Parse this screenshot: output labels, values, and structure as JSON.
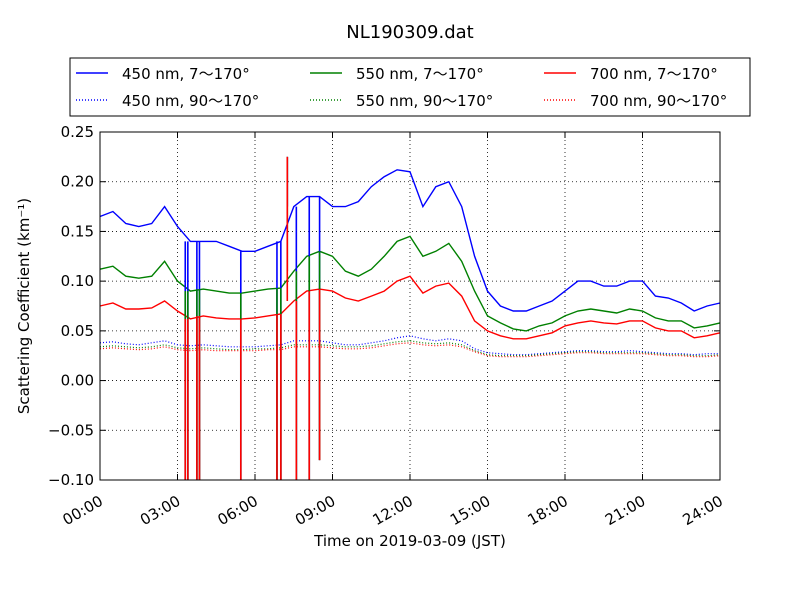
{
  "chart_data": {
    "type": "line",
    "title": "NL190309.dat",
    "xlabel": "Time on 2019-03-09 (JST)",
    "ylabel": "Scattering Coefficient (km⁻¹)",
    "xlim": [
      0,
      24
    ],
    "ylim": [
      -0.1,
      0.25
    ],
    "x_ticks": [
      "00:00",
      "03:00",
      "06:00",
      "09:00",
      "12:00",
      "15:00",
      "18:00",
      "21:00",
      "24:00"
    ],
    "y_ticks": [
      "−0.10",
      "−0.05",
      "0.00",
      "0.05",
      "0.10",
      "0.15",
      "0.20",
      "0.25"
    ],
    "grid": true,
    "legend_placement": "top (above plot, 3 columns)",
    "x": [
      0.0,
      0.5,
      1.0,
      1.5,
      2.0,
      2.5,
      3.0,
      3.5,
      4.0,
      4.5,
      5.0,
      5.5,
      6.0,
      6.5,
      7.0,
      7.5,
      8.0,
      8.5,
      9.0,
      9.5,
      10.0,
      10.5,
      11.0,
      11.5,
      12.0,
      12.5,
      13.0,
      13.5,
      14.0,
      14.5,
      15.0,
      15.5,
      16.0,
      16.5,
      17.0,
      17.5,
      18.0,
      18.5,
      19.0,
      19.5,
      20.0,
      20.5,
      21.0,
      21.5,
      22.0,
      22.5,
      23.0,
      23.5,
      24.0
    ],
    "series": [
      {
        "name": "450 nm, 7～170°",
        "color": "#0000ff",
        "style": "solid",
        "values": [
          0.165,
          0.17,
          0.158,
          0.155,
          0.158,
          0.175,
          0.155,
          0.14,
          0.14,
          0.14,
          0.135,
          0.13,
          0.13,
          0.135,
          0.14,
          0.175,
          0.185,
          0.185,
          0.175,
          0.175,
          0.18,
          0.195,
          0.205,
          0.212,
          0.21,
          0.175,
          0.195,
          0.2,
          0.175,
          0.125,
          0.09,
          0.075,
          0.07,
          0.07,
          0.075,
          0.08,
          0.09,
          0.1,
          0.1,
          0.095,
          0.095,
          0.1,
          0.1,
          0.085,
          0.083,
          0.078,
          0.07,
          0.075,
          0.078
        ]
      },
      {
        "name": "550 nm, 7～170°",
        "color": "#008000",
        "style": "solid",
        "values": [
          0.112,
          0.115,
          0.105,
          0.103,
          0.105,
          0.12,
          0.1,
          0.09,
          0.092,
          0.09,
          0.088,
          0.088,
          0.09,
          0.092,
          0.093,
          0.11,
          0.125,
          0.13,
          0.125,
          0.11,
          0.105,
          0.112,
          0.125,
          0.14,
          0.145,
          0.125,
          0.13,
          0.138,
          0.12,
          0.09,
          0.065,
          0.058,
          0.052,
          0.05,
          0.055,
          0.058,
          0.065,
          0.07,
          0.072,
          0.07,
          0.068,
          0.072,
          0.07,
          0.063,
          0.06,
          0.06,
          0.053,
          0.055,
          0.058
        ]
      },
      {
        "name": "700 nm, 7～170°",
        "color": "#ff0000",
        "style": "solid",
        "values": [
          0.075,
          0.078,
          0.072,
          0.072,
          0.073,
          0.08,
          0.07,
          0.062,
          0.065,
          0.063,
          0.062,
          0.062,
          0.063,
          0.065,
          0.067,
          0.08,
          0.09,
          0.092,
          0.09,
          0.083,
          0.08,
          0.085,
          0.09,
          0.1,
          0.105,
          0.088,
          0.095,
          0.098,
          0.085,
          0.06,
          0.05,
          0.045,
          0.042,
          0.042,
          0.045,
          0.048,
          0.055,
          0.058,
          0.06,
          0.058,
          0.057,
          0.06,
          0.06,
          0.053,
          0.05,
          0.05,
          0.043,
          0.045,
          0.048
        ]
      },
      {
        "name": "450 nm, 90～170°",
        "color": "#0000ff",
        "style": "dotted",
        "values": [
          0.038,
          0.039,
          0.037,
          0.036,
          0.038,
          0.04,
          0.036,
          0.035,
          0.036,
          0.035,
          0.034,
          0.034,
          0.034,
          0.035,
          0.036,
          0.04,
          0.04,
          0.04,
          0.038,
          0.036,
          0.036,
          0.038,
          0.04,
          0.043,
          0.045,
          0.042,
          0.04,
          0.042,
          0.04,
          0.032,
          0.028,
          0.027,
          0.026,
          0.026,
          0.027,
          0.028,
          0.029,
          0.03,
          0.03,
          0.029,
          0.029,
          0.03,
          0.029,
          0.028,
          0.027,
          0.027,
          0.026,
          0.027,
          0.027
        ]
      },
      {
        "name": "550 nm, 90～170°",
        "color": "#008000",
        "style": "dotted",
        "values": [
          0.034,
          0.035,
          0.034,
          0.033,
          0.034,
          0.036,
          0.033,
          0.032,
          0.033,
          0.032,
          0.031,
          0.031,
          0.032,
          0.032,
          0.033,
          0.036,
          0.036,
          0.036,
          0.035,
          0.034,
          0.034,
          0.035,
          0.037,
          0.039,
          0.04,
          0.038,
          0.037,
          0.038,
          0.036,
          0.03,
          0.026,
          0.025,
          0.025,
          0.025,
          0.026,
          0.027,
          0.028,
          0.029,
          0.029,
          0.028,
          0.028,
          0.028,
          0.028,
          0.027,
          0.026,
          0.026,
          0.025,
          0.025,
          0.026
        ]
      },
      {
        "name": "700 nm, 90～170°",
        "color": "#ff0000",
        "style": "dotted",
        "values": [
          0.032,
          0.033,
          0.032,
          0.031,
          0.032,
          0.034,
          0.031,
          0.03,
          0.031,
          0.03,
          0.03,
          0.03,
          0.03,
          0.031,
          0.031,
          0.034,
          0.034,
          0.034,
          0.033,
          0.032,
          0.032,
          0.033,
          0.035,
          0.037,
          0.038,
          0.036,
          0.035,
          0.036,
          0.034,
          0.029,
          0.025,
          0.024,
          0.024,
          0.024,
          0.025,
          0.026,
          0.027,
          0.028,
          0.028,
          0.027,
          0.027,
          0.027,
          0.027,
          0.026,
          0.025,
          0.025,
          0.024,
          0.024,
          0.025
        ]
      }
    ],
    "spikes": [
      {
        "x": 3.3,
        "y": -0.1
      },
      {
        "x": 3.4,
        "y": -0.1
      },
      {
        "x": 3.75,
        "y": -0.1
      },
      {
        "x": 3.85,
        "y": -0.1
      },
      {
        "x": 5.45,
        "y": -0.1
      },
      {
        "x": 6.85,
        "y": -0.1
      },
      {
        "x": 7.0,
        "y": -0.1
      },
      {
        "x": 7.25,
        "y": 0.225
      },
      {
        "x": 7.6,
        "y": -0.1
      },
      {
        "x": 8.1,
        "y": -0.1
      },
      {
        "x": 8.5,
        "y": -0.08
      }
    ]
  }
}
